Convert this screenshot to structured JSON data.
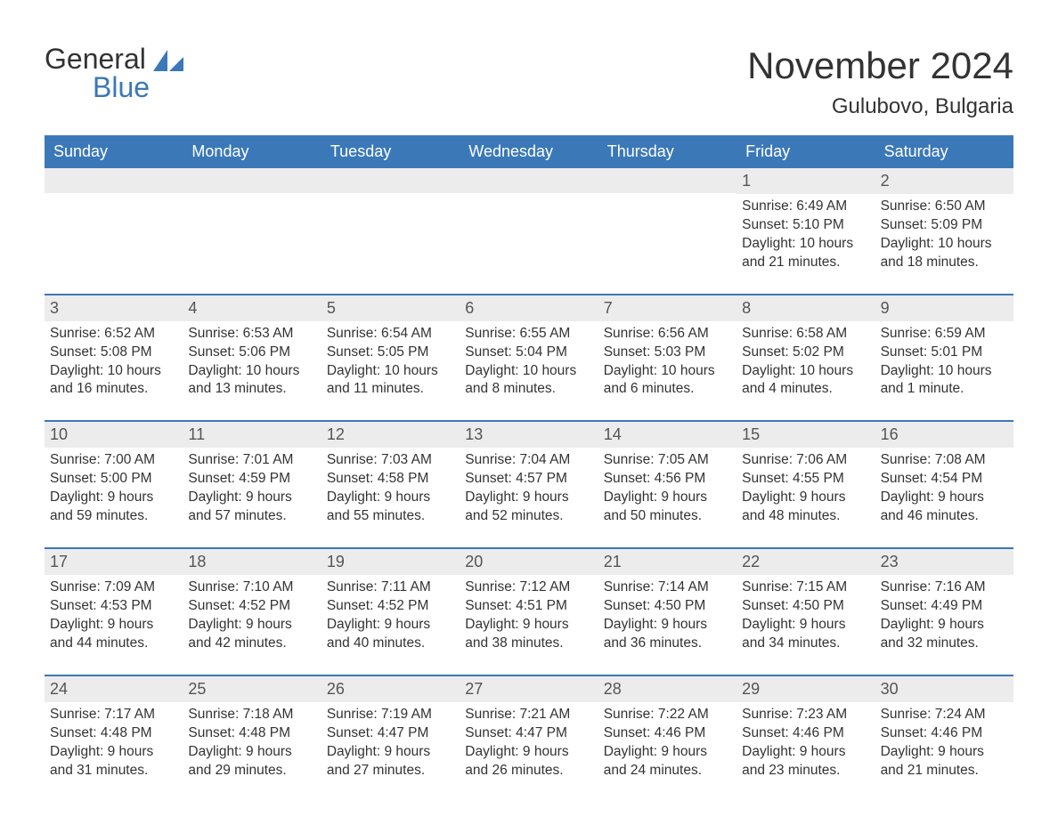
{
  "logo": {
    "word1": "General",
    "word2": "Blue",
    "accent_color": "#3b78b8"
  },
  "title": {
    "month": "November 2024",
    "location": "Gulubovo, Bulgaria"
  },
  "colors": {
    "header_bg": "#3b78b8",
    "header_text": "#ffffff",
    "daynum_bg": "#ececec",
    "border": "#3b78b8",
    "body_text": "#333333"
  },
  "day_labels": [
    "Sunday",
    "Monday",
    "Tuesday",
    "Wednesday",
    "Thursday",
    "Friday",
    "Saturday"
  ],
  "weeks": [
    [
      null,
      null,
      null,
      null,
      null,
      {
        "n": "1",
        "sunrise": "6:49 AM",
        "sunset": "5:10 PM",
        "daylight": "10 hours and 21 minutes."
      },
      {
        "n": "2",
        "sunrise": "6:50 AM",
        "sunset": "5:09 PM",
        "daylight": "10 hours and 18 minutes."
      }
    ],
    [
      {
        "n": "3",
        "sunrise": "6:52 AM",
        "sunset": "5:08 PM",
        "daylight": "10 hours and 16 minutes."
      },
      {
        "n": "4",
        "sunrise": "6:53 AM",
        "sunset": "5:06 PM",
        "daylight": "10 hours and 13 minutes."
      },
      {
        "n": "5",
        "sunrise": "6:54 AM",
        "sunset": "5:05 PM",
        "daylight": "10 hours and 11 minutes."
      },
      {
        "n": "6",
        "sunrise": "6:55 AM",
        "sunset": "5:04 PM",
        "daylight": "10 hours and 8 minutes."
      },
      {
        "n": "7",
        "sunrise": "6:56 AM",
        "sunset": "5:03 PM",
        "daylight": "10 hours and 6 minutes."
      },
      {
        "n": "8",
        "sunrise": "6:58 AM",
        "sunset": "5:02 PM",
        "daylight": "10 hours and 4 minutes."
      },
      {
        "n": "9",
        "sunrise": "6:59 AM",
        "sunset": "5:01 PM",
        "daylight": "10 hours and 1 minute."
      }
    ],
    [
      {
        "n": "10",
        "sunrise": "7:00 AM",
        "sunset": "5:00 PM",
        "daylight": "9 hours and 59 minutes."
      },
      {
        "n": "11",
        "sunrise": "7:01 AM",
        "sunset": "4:59 PM",
        "daylight": "9 hours and 57 minutes."
      },
      {
        "n": "12",
        "sunrise": "7:03 AM",
        "sunset": "4:58 PM",
        "daylight": "9 hours and 55 minutes."
      },
      {
        "n": "13",
        "sunrise": "7:04 AM",
        "sunset": "4:57 PM",
        "daylight": "9 hours and 52 minutes."
      },
      {
        "n": "14",
        "sunrise": "7:05 AM",
        "sunset": "4:56 PM",
        "daylight": "9 hours and 50 minutes."
      },
      {
        "n": "15",
        "sunrise": "7:06 AM",
        "sunset": "4:55 PM",
        "daylight": "9 hours and 48 minutes."
      },
      {
        "n": "16",
        "sunrise": "7:08 AM",
        "sunset": "4:54 PM",
        "daylight": "9 hours and 46 minutes."
      }
    ],
    [
      {
        "n": "17",
        "sunrise": "7:09 AM",
        "sunset": "4:53 PM",
        "daylight": "9 hours and 44 minutes."
      },
      {
        "n": "18",
        "sunrise": "7:10 AM",
        "sunset": "4:52 PM",
        "daylight": "9 hours and 42 minutes."
      },
      {
        "n": "19",
        "sunrise": "7:11 AM",
        "sunset": "4:52 PM",
        "daylight": "9 hours and 40 minutes."
      },
      {
        "n": "20",
        "sunrise": "7:12 AM",
        "sunset": "4:51 PM",
        "daylight": "9 hours and 38 minutes."
      },
      {
        "n": "21",
        "sunrise": "7:14 AM",
        "sunset": "4:50 PM",
        "daylight": "9 hours and 36 minutes."
      },
      {
        "n": "22",
        "sunrise": "7:15 AM",
        "sunset": "4:50 PM",
        "daylight": "9 hours and 34 minutes."
      },
      {
        "n": "23",
        "sunrise": "7:16 AM",
        "sunset": "4:49 PM",
        "daylight": "9 hours and 32 minutes."
      }
    ],
    [
      {
        "n": "24",
        "sunrise": "7:17 AM",
        "sunset": "4:48 PM",
        "daylight": "9 hours and 31 minutes."
      },
      {
        "n": "25",
        "sunrise": "7:18 AM",
        "sunset": "4:48 PM",
        "daylight": "9 hours and 29 minutes."
      },
      {
        "n": "26",
        "sunrise": "7:19 AM",
        "sunset": "4:47 PM",
        "daylight": "9 hours and 27 minutes."
      },
      {
        "n": "27",
        "sunrise": "7:21 AM",
        "sunset": "4:47 PM",
        "daylight": "9 hours and 26 minutes."
      },
      {
        "n": "28",
        "sunrise": "7:22 AM",
        "sunset": "4:46 PM",
        "daylight": "9 hours and 24 minutes."
      },
      {
        "n": "29",
        "sunrise": "7:23 AM",
        "sunset": "4:46 PM",
        "daylight": "9 hours and 23 minutes."
      },
      {
        "n": "30",
        "sunrise": "7:24 AM",
        "sunset": "4:46 PM",
        "daylight": "9 hours and 21 minutes."
      }
    ]
  ],
  "labels": {
    "sunrise": "Sunrise: ",
    "sunset": "Sunset: ",
    "daylight": "Daylight: "
  }
}
